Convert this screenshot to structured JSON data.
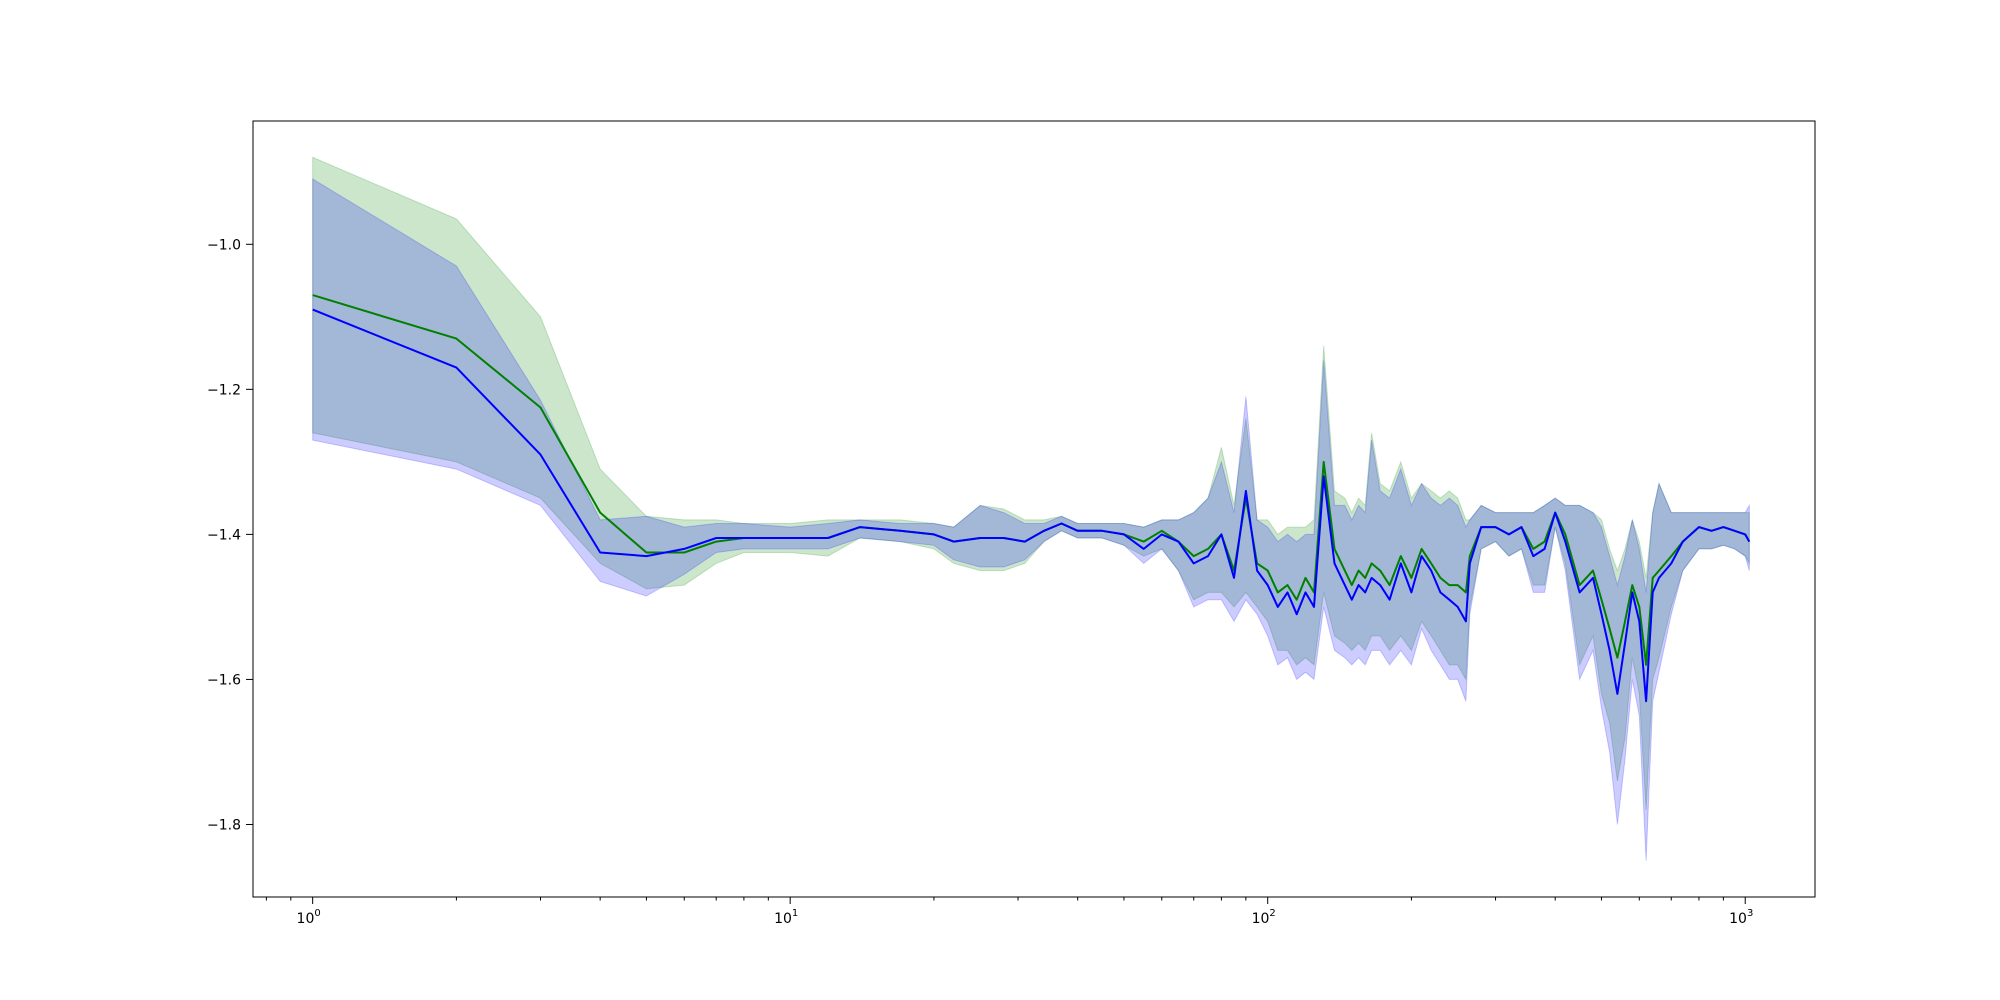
{
  "chart_data": {
    "type": "line",
    "title": "",
    "xlabel": "",
    "ylabel": "",
    "xscale": "log",
    "xlim": [
      0.75,
      1400
    ],
    "ylim": [
      -1.9,
      -0.83
    ],
    "grid": false,
    "x_ticks": [
      {
        "value": 1,
        "base": "10",
        "exp": "0"
      },
      {
        "value": 10,
        "base": "10",
        "exp": "1"
      },
      {
        "value": 100,
        "base": "10",
        "exp": "2"
      },
      {
        "value": 1000,
        "base": "10",
        "exp": "3"
      }
    ],
    "y_ticks": [
      {
        "value": -1.0,
        "label": "−1.0"
      },
      {
        "value": -1.2,
        "label": "−1.2"
      },
      {
        "value": -1.4,
        "label": "−1.4"
      },
      {
        "value": -1.6,
        "label": "−1.6"
      },
      {
        "value": -1.8,
        "label": "−1.8"
      }
    ],
    "series": [
      {
        "color": "#008000",
        "band_color": "#008000",
        "band_opacity": 0.2,
        "points": [
          [
            1,
            -1.07,
            -0.88,
            -1.26
          ],
          [
            2,
            -1.13,
            -0.965,
            -1.3
          ],
          [
            3,
            -1.225,
            -1.1,
            -1.35
          ],
          [
            4,
            -1.37,
            -1.31,
            -1.44
          ],
          [
            5,
            -1.425,
            -1.375,
            -1.475
          ],
          [
            6,
            -1.425,
            -1.38,
            -1.47
          ],
          [
            7,
            -1.41,
            -1.38,
            -1.44
          ],
          [
            8,
            -1.405,
            -1.385,
            -1.425
          ],
          [
            10,
            -1.405,
            -1.385,
            -1.425
          ],
          [
            12,
            -1.405,
            -1.38,
            -1.43
          ],
          [
            14,
            -1.39,
            -1.38,
            -1.405
          ],
          [
            17,
            -1.395,
            -1.38,
            -1.41
          ],
          [
            20,
            -1.4,
            -1.385,
            -1.42
          ],
          [
            22,
            -1.41,
            -1.39,
            -1.44
          ],
          [
            25,
            -1.405,
            -1.36,
            -1.45
          ],
          [
            28,
            -1.405,
            -1.365,
            -1.45
          ],
          [
            31,
            -1.41,
            -1.38,
            -1.44
          ],
          [
            34,
            -1.395,
            -1.38,
            -1.41
          ],
          [
            37,
            -1.385,
            -1.375,
            -1.395
          ],
          [
            40,
            -1.395,
            -1.385,
            -1.405
          ],
          [
            45,
            -1.395,
            -1.385,
            -1.405
          ],
          [
            50,
            -1.4,
            -1.385,
            -1.415
          ],
          [
            55,
            -1.41,
            -1.39,
            -1.43
          ],
          [
            60,
            -1.395,
            -1.38,
            -1.42
          ],
          [
            65,
            -1.41,
            -1.38,
            -1.45
          ],
          [
            70,
            -1.43,
            -1.37,
            -1.49
          ],
          [
            75,
            -1.42,
            -1.35,
            -1.48
          ],
          [
            80,
            -1.4,
            -1.28,
            -1.48
          ],
          [
            85,
            -1.45,
            -1.36,
            -1.5
          ],
          [
            90,
            -1.35,
            -1.24,
            -1.48
          ],
          [
            95,
            -1.44,
            -1.38,
            -1.5
          ],
          [
            100,
            -1.45,
            -1.38,
            -1.52
          ],
          [
            105,
            -1.48,
            -1.4,
            -1.56
          ],
          [
            110,
            -1.47,
            -1.39,
            -1.56
          ],
          [
            115,
            -1.49,
            -1.39,
            -1.58
          ],
          [
            120,
            -1.46,
            -1.39,
            -1.57
          ],
          [
            125,
            -1.48,
            -1.38,
            -1.58
          ],
          [
            131,
            -1.3,
            -1.14,
            -1.48
          ],
          [
            138,
            -1.42,
            -1.34,
            -1.54
          ],
          [
            145,
            -1.45,
            -1.35,
            -1.55
          ],
          [
            150,
            -1.47,
            -1.37,
            -1.56
          ],
          [
            155,
            -1.45,
            -1.35,
            -1.55
          ],
          [
            160,
            -1.46,
            -1.36,
            -1.56
          ],
          [
            165,
            -1.44,
            -1.26,
            -1.54
          ],
          [
            172,
            -1.45,
            -1.33,
            -1.54
          ],
          [
            180,
            -1.47,
            -1.34,
            -1.56
          ],
          [
            190,
            -1.43,
            -1.3,
            -1.54
          ],
          [
            200,
            -1.46,
            -1.35,
            -1.56
          ],
          [
            210,
            -1.42,
            -1.33,
            -1.52
          ],
          [
            220,
            -1.44,
            -1.34,
            -1.54
          ],
          [
            230,
            -1.46,
            -1.35,
            -1.56
          ],
          [
            240,
            -1.47,
            -1.34,
            -1.58
          ],
          [
            250,
            -1.47,
            -1.35,
            -1.58
          ],
          [
            260,
            -1.48,
            -1.38,
            -1.6
          ],
          [
            265,
            -1.43,
            -1.38,
            -1.5
          ],
          [
            280,
            -1.39,
            -1.36,
            -1.42
          ],
          [
            300,
            -1.39,
            -1.37,
            -1.41
          ],
          [
            320,
            -1.4,
            -1.37,
            -1.43
          ],
          [
            340,
            -1.39,
            -1.37,
            -1.42
          ],
          [
            360,
            -1.42,
            -1.37,
            -1.47
          ],
          [
            380,
            -1.41,
            -1.36,
            -1.47
          ],
          [
            400,
            -1.37,
            -1.35,
            -1.39
          ],
          [
            420,
            -1.4,
            -1.36,
            -1.44
          ],
          [
            450,
            -1.47,
            -1.36,
            -1.58
          ],
          [
            480,
            -1.45,
            -1.37,
            -1.54
          ],
          [
            500,
            -1.49,
            -1.38,
            -1.62
          ],
          [
            520,
            -1.53,
            -1.42,
            -1.66
          ],
          [
            540,
            -1.57,
            -1.45,
            -1.74
          ],
          [
            560,
            -1.52,
            -1.42,
            -1.68
          ],
          [
            580,
            -1.47,
            -1.38,
            -1.57
          ],
          [
            600,
            -1.5,
            -1.41,
            -1.62
          ],
          [
            620,
            -1.58,
            -1.46,
            -1.78
          ],
          [
            640,
            -1.46,
            -1.37,
            -1.6
          ],
          [
            660,
            -1.45,
            -1.33,
            -1.57
          ],
          [
            700,
            -1.43,
            -1.37,
            -1.5
          ],
          [
            740,
            -1.41,
            -1.37,
            -1.45
          ],
          [
            800,
            -1.39,
            -1.37,
            -1.42
          ],
          [
            850,
            -1.395,
            -1.37,
            -1.42
          ],
          [
            900,
            -1.39,
            -1.37,
            -1.415
          ],
          [
            950,
            -1.395,
            -1.37,
            -1.42
          ],
          [
            1000,
            -1.4,
            -1.37,
            -1.43
          ],
          [
            1020,
            -1.41,
            -1.37,
            -1.44
          ]
        ]
      },
      {
        "color": "#0000ff",
        "band_color": "#0000ff",
        "band_opacity": 0.2,
        "points": [
          [
            1,
            -1.09,
            -0.91,
            -1.27
          ],
          [
            2,
            -1.17,
            -1.03,
            -1.31
          ],
          [
            3,
            -1.29,
            -1.215,
            -1.36
          ],
          [
            4,
            -1.425,
            -1.38,
            -1.465
          ],
          [
            5,
            -1.43,
            -1.375,
            -1.485
          ],
          [
            6,
            -1.42,
            -1.39,
            -1.455
          ],
          [
            7,
            -1.405,
            -1.385,
            -1.425
          ],
          [
            8,
            -1.405,
            -1.385,
            -1.42
          ],
          [
            10,
            -1.405,
            -1.39,
            -1.42
          ],
          [
            12,
            -1.405,
            -1.385,
            -1.42
          ],
          [
            14,
            -1.39,
            -1.38,
            -1.405
          ],
          [
            17,
            -1.395,
            -1.385,
            -1.41
          ],
          [
            20,
            -1.4,
            -1.385,
            -1.415
          ],
          [
            22,
            -1.41,
            -1.39,
            -1.435
          ],
          [
            25,
            -1.405,
            -1.36,
            -1.445
          ],
          [
            28,
            -1.405,
            -1.37,
            -1.445
          ],
          [
            31,
            -1.41,
            -1.385,
            -1.435
          ],
          [
            34,
            -1.395,
            -1.385,
            -1.41
          ],
          [
            37,
            -1.385,
            -1.375,
            -1.395
          ],
          [
            40,
            -1.395,
            -1.385,
            -1.405
          ],
          [
            45,
            -1.395,
            -1.385,
            -1.405
          ],
          [
            50,
            -1.4,
            -1.385,
            -1.415
          ],
          [
            55,
            -1.42,
            -1.39,
            -1.44
          ],
          [
            60,
            -1.4,
            -1.38,
            -1.42
          ],
          [
            65,
            -1.41,
            -1.38,
            -1.45
          ],
          [
            70,
            -1.44,
            -1.37,
            -1.5
          ],
          [
            75,
            -1.43,
            -1.35,
            -1.49
          ],
          [
            80,
            -1.4,
            -1.3,
            -1.49
          ],
          [
            85,
            -1.46,
            -1.37,
            -1.52
          ],
          [
            90,
            -1.34,
            -1.21,
            -1.49
          ],
          [
            95,
            -1.45,
            -1.38,
            -1.51
          ],
          [
            100,
            -1.47,
            -1.39,
            -1.54
          ],
          [
            105,
            -1.5,
            -1.41,
            -1.58
          ],
          [
            110,
            -1.48,
            -1.4,
            -1.57
          ],
          [
            115,
            -1.51,
            -1.41,
            -1.6
          ],
          [
            120,
            -1.48,
            -1.4,
            -1.59
          ],
          [
            125,
            -1.5,
            -1.4,
            -1.6
          ],
          [
            131,
            -1.32,
            -1.16,
            -1.5
          ],
          [
            138,
            -1.44,
            -1.36,
            -1.56
          ],
          [
            145,
            -1.47,
            -1.36,
            -1.57
          ],
          [
            150,
            -1.49,
            -1.38,
            -1.58
          ],
          [
            155,
            -1.47,
            -1.36,
            -1.57
          ],
          [
            160,
            -1.48,
            -1.37,
            -1.58
          ],
          [
            165,
            -1.46,
            -1.27,
            -1.56
          ],
          [
            172,
            -1.47,
            -1.34,
            -1.56
          ],
          [
            180,
            -1.49,
            -1.35,
            -1.58
          ],
          [
            190,
            -1.44,
            -1.31,
            -1.56
          ],
          [
            200,
            -1.48,
            -1.36,
            -1.58
          ],
          [
            210,
            -1.43,
            -1.33,
            -1.53
          ],
          [
            220,
            -1.45,
            -1.35,
            -1.56
          ],
          [
            230,
            -1.48,
            -1.36,
            -1.58
          ],
          [
            240,
            -1.49,
            -1.35,
            -1.6
          ],
          [
            250,
            -1.5,
            -1.36,
            -1.6
          ],
          [
            260,
            -1.52,
            -1.39,
            -1.63
          ],
          [
            265,
            -1.44,
            -1.38,
            -1.51
          ],
          [
            280,
            -1.39,
            -1.36,
            -1.42
          ],
          [
            300,
            -1.39,
            -1.37,
            -1.41
          ],
          [
            320,
            -1.4,
            -1.37,
            -1.43
          ],
          [
            340,
            -1.39,
            -1.37,
            -1.42
          ],
          [
            360,
            -1.43,
            -1.37,
            -1.48
          ],
          [
            380,
            -1.42,
            -1.36,
            -1.48
          ],
          [
            400,
            -1.37,
            -1.35,
            -1.39
          ],
          [
            420,
            -1.41,
            -1.36,
            -1.45
          ],
          [
            450,
            -1.48,
            -1.36,
            -1.6
          ],
          [
            480,
            -1.46,
            -1.37,
            -1.56
          ],
          [
            500,
            -1.51,
            -1.39,
            -1.64
          ],
          [
            520,
            -1.56,
            -1.43,
            -1.7
          ],
          [
            540,
            -1.62,
            -1.47,
            -1.8
          ],
          [
            560,
            -1.55,
            -1.43,
            -1.71
          ],
          [
            580,
            -1.48,
            -1.38,
            -1.6
          ],
          [
            600,
            -1.52,
            -1.42,
            -1.65
          ],
          [
            620,
            -1.63,
            -1.48,
            -1.85
          ],
          [
            640,
            -1.48,
            -1.37,
            -1.63
          ],
          [
            660,
            -1.46,
            -1.33,
            -1.59
          ],
          [
            700,
            -1.44,
            -1.37,
            -1.51
          ],
          [
            740,
            -1.41,
            -1.37,
            -1.45
          ],
          [
            800,
            -1.39,
            -1.37,
            -1.42
          ],
          [
            850,
            -1.395,
            -1.37,
            -1.42
          ],
          [
            900,
            -1.39,
            -1.37,
            -1.415
          ],
          [
            950,
            -1.395,
            -1.37,
            -1.42
          ],
          [
            1000,
            -1.4,
            -1.37,
            -1.43
          ],
          [
            1020,
            -1.41,
            -1.36,
            -1.45
          ]
        ]
      }
    ]
  }
}
